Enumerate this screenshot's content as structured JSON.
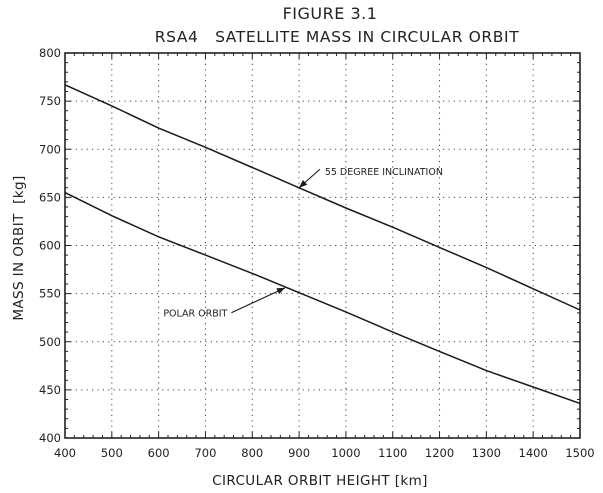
{
  "figure_label": "FIGURE 3.1",
  "chart_data": {
    "type": "line",
    "title": "RSA4   SATELLITE MASS IN CIRCULAR ORBIT",
    "xlabel": "CIRCULAR ORBIT HEIGHT [km]",
    "ylabel": "MASS IN ORBIT  [kg]",
    "xlim": [
      400,
      1500
    ],
    "ylim": [
      400,
      800
    ],
    "xticks": [
      400,
      500,
      600,
      700,
      800,
      900,
      1000,
      1100,
      1200,
      1300,
      1400,
      1500
    ],
    "yticks": [
      400,
      450,
      500,
      550,
      600,
      650,
      700,
      750,
      800
    ],
    "grid": true,
    "series": [
      {
        "name": "55 DEGREE INCLINATION",
        "x": [
          400,
          500,
          600,
          700,
          800,
          900,
          1000,
          1100,
          1200,
          1300,
          1400,
          1500
        ],
        "y": [
          767,
          745,
          722,
          702,
          681,
          660,
          639,
          619,
          598,
          577,
          555,
          533
        ]
      },
      {
        "name": "POLAR ORBIT",
        "x": [
          400,
          500,
          600,
          700,
          800,
          900,
          1000,
          1100,
          1200,
          1300,
          1400,
          1500
        ],
        "y": [
          655,
          631,
          609,
          590,
          571,
          551,
          531,
          510,
          490,
          470,
          453,
          436
        ]
      }
    ],
    "annotations": [
      {
        "label": "55 DEGREE INCLINATION",
        "points_to": {
          "x": 900,
          "y": 660
        },
        "text_at": {
          "x": 955,
          "y": 673
        }
      },
      {
        "label": "POLAR ORBIT",
        "points_to": {
          "x": 870,
          "y": 556
        },
        "text_at": {
          "x": 610,
          "y": 526
        }
      }
    ]
  }
}
